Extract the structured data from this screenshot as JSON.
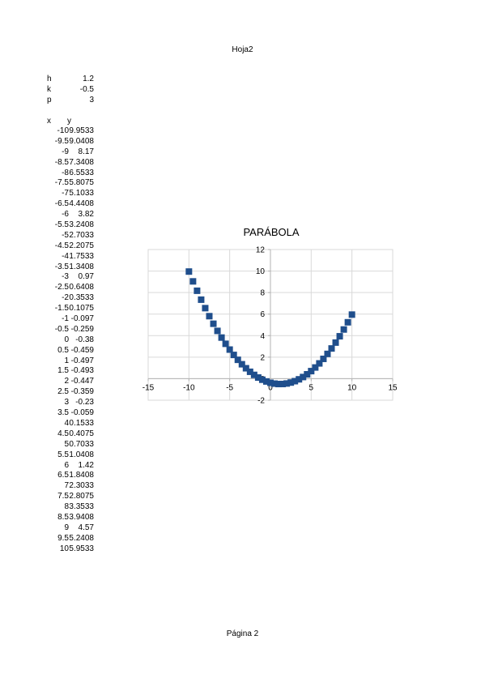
{
  "sheet_name": "Hoja2",
  "footer": "Página 2",
  "params": [
    {
      "name": "h",
      "value": "1.2"
    },
    {
      "name": "k",
      "value": "-0.5"
    },
    {
      "name": "p",
      "value": "3"
    }
  ],
  "table": {
    "headers": [
      "x",
      "y"
    ],
    "rows": [
      [
        "-10",
        "9.9533"
      ],
      [
        "-9.5",
        "9.0408"
      ],
      [
        "-9",
        "8.17"
      ],
      [
        "-8.5",
        "7.3408"
      ],
      [
        "-8",
        "6.5533"
      ],
      [
        "-7.5",
        "5.8075"
      ],
      [
        "-7",
        "5.1033"
      ],
      [
        "-6.5",
        "4.4408"
      ],
      [
        "-6",
        "3.82"
      ],
      [
        "-5.5",
        "3.2408"
      ],
      [
        "-5",
        "2.7033"
      ],
      [
        "-4.5",
        "2.2075"
      ],
      [
        "-4",
        "1.7533"
      ],
      [
        "-3.5",
        "1.3408"
      ],
      [
        "-3",
        "0.97"
      ],
      [
        "-2.5",
        "0.6408"
      ],
      [
        "-2",
        "0.3533"
      ],
      [
        "-1.5",
        "0.1075"
      ],
      [
        "-1",
        "-0.097"
      ],
      [
        "-0.5",
        "-0.259"
      ],
      [
        "0",
        "-0.38"
      ],
      [
        "0.5",
        "-0.459"
      ],
      [
        "1",
        "-0.497"
      ],
      [
        "1.5",
        "-0.493"
      ],
      [
        "2",
        "-0.447"
      ],
      [
        "2.5",
        "-0.359"
      ],
      [
        "3",
        "-0.23"
      ],
      [
        "3.5",
        "-0.059"
      ],
      [
        "4",
        "0.1533"
      ],
      [
        "4.5",
        "0.4075"
      ],
      [
        "5",
        "0.7033"
      ],
      [
        "5.5",
        "1.0408"
      ],
      [
        "6",
        "1.42"
      ],
      [
        "6.5",
        "1.8408"
      ],
      [
        "7",
        "2.3033"
      ],
      [
        "7.5",
        "2.8075"
      ],
      [
        "8",
        "3.3533"
      ],
      [
        "8.5",
        "3.9408"
      ],
      [
        "9",
        "4.57"
      ],
      [
        "9.5",
        "5.2408"
      ],
      [
        "10",
        "5.9533"
      ]
    ]
  },
  "chart_data": {
    "type": "scatter",
    "title": "PARÁBOLA",
    "xlabel": "",
    "ylabel": "",
    "xlim": [
      -15,
      15
    ],
    "ylim": [
      -2,
      12
    ],
    "xticks": [
      -15,
      -10,
      -5,
      0,
      5,
      10,
      15
    ],
    "yticks": [
      -2,
      0,
      2,
      4,
      6,
      8,
      10,
      12
    ],
    "grid": true,
    "legend": "none",
    "marker_color": "#1f4e8c",
    "x": [
      -10,
      -9.5,
      -9,
      -8.5,
      -8,
      -7.5,
      -7,
      -6.5,
      -6,
      -5.5,
      -5,
      -4.5,
      -4,
      -3.5,
      -3,
      -2.5,
      -2,
      -1.5,
      -1,
      -0.5,
      0,
      0.5,
      1,
      1.5,
      2,
      2.5,
      3,
      3.5,
      4,
      4.5,
      5,
      5.5,
      6,
      6.5,
      7,
      7.5,
      8,
      8.5,
      9,
      9.5,
      10
    ],
    "y": [
      9.9533,
      9.0408,
      8.17,
      7.3408,
      6.5533,
      5.8075,
      5.1033,
      4.4408,
      3.82,
      3.2408,
      2.7033,
      2.2075,
      1.7533,
      1.3408,
      0.97,
      0.6408,
      0.3533,
      0.1075,
      -0.097,
      -0.259,
      -0.38,
      -0.459,
      -0.497,
      -0.493,
      -0.447,
      -0.359,
      -0.23,
      -0.059,
      0.1533,
      0.4075,
      0.7033,
      1.0408,
      1.42,
      1.8408,
      2.3033,
      2.8075,
      3.3533,
      3.9408,
      4.57,
      5.2408,
      5.9533
    ]
  }
}
